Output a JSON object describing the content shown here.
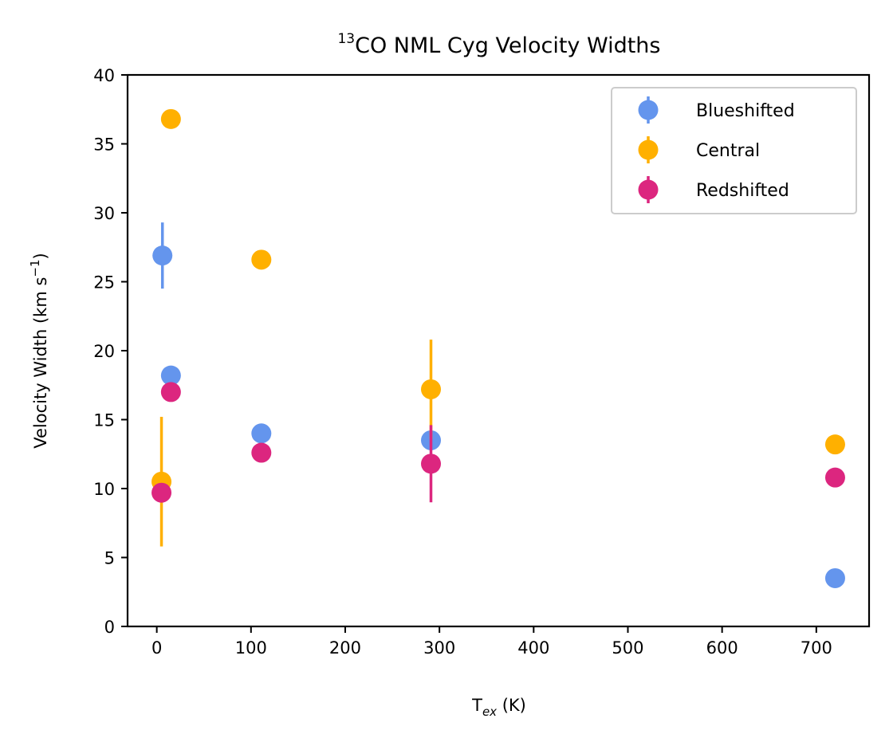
{
  "chart_data": {
    "type": "scatter",
    "title": {
      "sup": "13",
      "main": "CO NML Cyg Velocity Widths"
    },
    "xlabel": {
      "base": "T",
      "sub": "ex",
      "unit": " (K)"
    },
    "ylabel": {
      "main": "Velocity Width (km s",
      "sup": "−1",
      "close": ")"
    },
    "xlim": [
      -31,
      756
    ],
    "ylim": [
      0,
      40
    ],
    "xticks": [
      0,
      100,
      200,
      300,
      400,
      500,
      600,
      700
    ],
    "yticks": [
      0,
      5,
      10,
      15,
      20,
      25,
      30,
      35,
      40
    ],
    "grid": false,
    "legend_position": "top-right",
    "series": [
      {
        "name": "Blueshifted",
        "color": "#6495ED",
        "points": [
          {
            "x": 6,
            "y": 26.9,
            "err": 2.4
          },
          {
            "x": 15,
            "y": 18.2,
            "err": 0
          },
          {
            "x": 111,
            "y": 14.0,
            "err": 0
          },
          {
            "x": 291,
            "y": 13.5,
            "err": 0
          },
          {
            "x": 720,
            "y": 3.5,
            "err": 0
          }
        ]
      },
      {
        "name": "Central",
        "color": "#FFB000",
        "points": [
          {
            "x": 15,
            "y": 36.8,
            "err": 0
          },
          {
            "x": 111,
            "y": 26.6,
            "err": 0
          },
          {
            "x": 5,
            "y": 10.5,
            "err": 4.7
          },
          {
            "x": 291,
            "y": 17.2,
            "err": 3.6
          },
          {
            "x": 720,
            "y": 13.2,
            "err": 0
          }
        ]
      },
      {
        "name": "Redshifted",
        "color": "#DC267F",
        "points": [
          {
            "x": 15,
            "y": 17.0,
            "err": 0
          },
          {
            "x": 111,
            "y": 12.6,
            "err": 0
          },
          {
            "x": 5,
            "y": 9.7,
            "err": 0
          },
          {
            "x": 291,
            "y": 11.8,
            "err": 2.8
          },
          {
            "x": 720,
            "y": 10.8,
            "err": 0
          }
        ]
      }
    ]
  }
}
